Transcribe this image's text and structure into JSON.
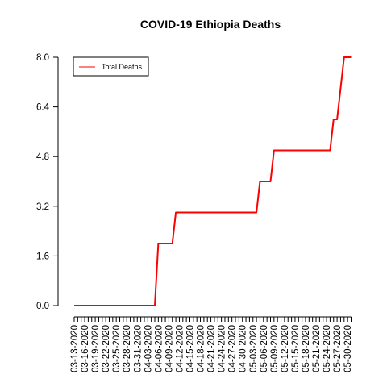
{
  "chart_data": {
    "type": "line",
    "title": "COVID-19 Ethiopia Deaths",
    "xlabel": "",
    "ylabel": "",
    "ylim": [
      0,
      8
    ],
    "y_ticks": [
      "0.0",
      "1.6",
      "3.2",
      "4.8",
      "6.4",
      "8.0"
    ],
    "x_tick_labels": [
      "03-13-2020",
      "03-16-2020",
      "03-19-2020",
      "03-22-2020",
      "03-25-2020",
      "03-28-2020",
      "03-31-2020",
      "04-03-2020",
      "04-06-2020",
      "04-09-2020",
      "04-12-2020",
      "04-15-2020",
      "04-18-2020",
      "04-21-2020",
      "04-24-2020",
      "04-27-2020",
      "04-30-2020",
      "05-03-2020",
      "05-06-2020",
      "05-09-2020",
      "05-12-2020",
      "05-15-2020",
      "05-18-2020",
      "05-21-2020",
      "05-24-2020",
      "05-27-2020",
      "05-30-2020"
    ],
    "grid": false,
    "legend_position": "top-left",
    "series": [
      {
        "name": "Total Deaths",
        "color": "#ff0000",
        "x": [
          "03-13-2020",
          "03-14-2020",
          "03-15-2020",
          "03-16-2020",
          "03-17-2020",
          "03-18-2020",
          "03-19-2020",
          "03-20-2020",
          "03-21-2020",
          "03-22-2020",
          "03-23-2020",
          "03-24-2020",
          "03-25-2020",
          "03-26-2020",
          "03-27-2020",
          "03-28-2020",
          "03-29-2020",
          "03-30-2020",
          "03-31-2020",
          "04-01-2020",
          "04-02-2020",
          "04-03-2020",
          "04-04-2020",
          "04-05-2020",
          "04-06-2020",
          "04-07-2020",
          "04-08-2020",
          "04-09-2020",
          "04-10-2020",
          "04-11-2020",
          "04-12-2020",
          "04-13-2020",
          "04-14-2020",
          "04-15-2020",
          "04-16-2020",
          "04-17-2020",
          "04-18-2020",
          "04-19-2020",
          "04-20-2020",
          "04-21-2020",
          "04-22-2020",
          "04-23-2020",
          "04-24-2020",
          "04-25-2020",
          "04-26-2020",
          "04-27-2020",
          "04-28-2020",
          "04-29-2020",
          "04-30-2020",
          "05-01-2020",
          "05-02-2020",
          "05-03-2020",
          "05-04-2020",
          "05-05-2020",
          "05-06-2020",
          "05-07-2020",
          "05-08-2020",
          "05-09-2020",
          "05-10-2020",
          "05-11-2020",
          "05-12-2020",
          "05-13-2020",
          "05-14-2020",
          "05-15-2020",
          "05-16-2020",
          "05-17-2020",
          "05-18-2020",
          "05-19-2020",
          "05-20-2020",
          "05-21-2020",
          "05-22-2020",
          "05-23-2020",
          "05-24-2020",
          "05-25-2020",
          "05-26-2020",
          "05-27-2020",
          "05-28-2020",
          "05-29-2020",
          "05-30-2020",
          "05-31-2020"
        ],
        "values": [
          0,
          0,
          0,
          0,
          0,
          0,
          0,
          0,
          0,
          0,
          0,
          0,
          0,
          0,
          0,
          0,
          0,
          0,
          0,
          0,
          0,
          0,
          0,
          0,
          2,
          2,
          2,
          2,
          2,
          3,
          3,
          3,
          3,
          3,
          3,
          3,
          3,
          3,
          3,
          3,
          3,
          3,
          3,
          3,
          3,
          3,
          3,
          3,
          3,
          3,
          3,
          3,
          3,
          4,
          4,
          4,
          4,
          5,
          5,
          5,
          5,
          5,
          5,
          5,
          5,
          5,
          5,
          5,
          5,
          5,
          5,
          5,
          5,
          5,
          6,
          6,
          7,
          8,
          8,
          8
        ]
      }
    ]
  }
}
